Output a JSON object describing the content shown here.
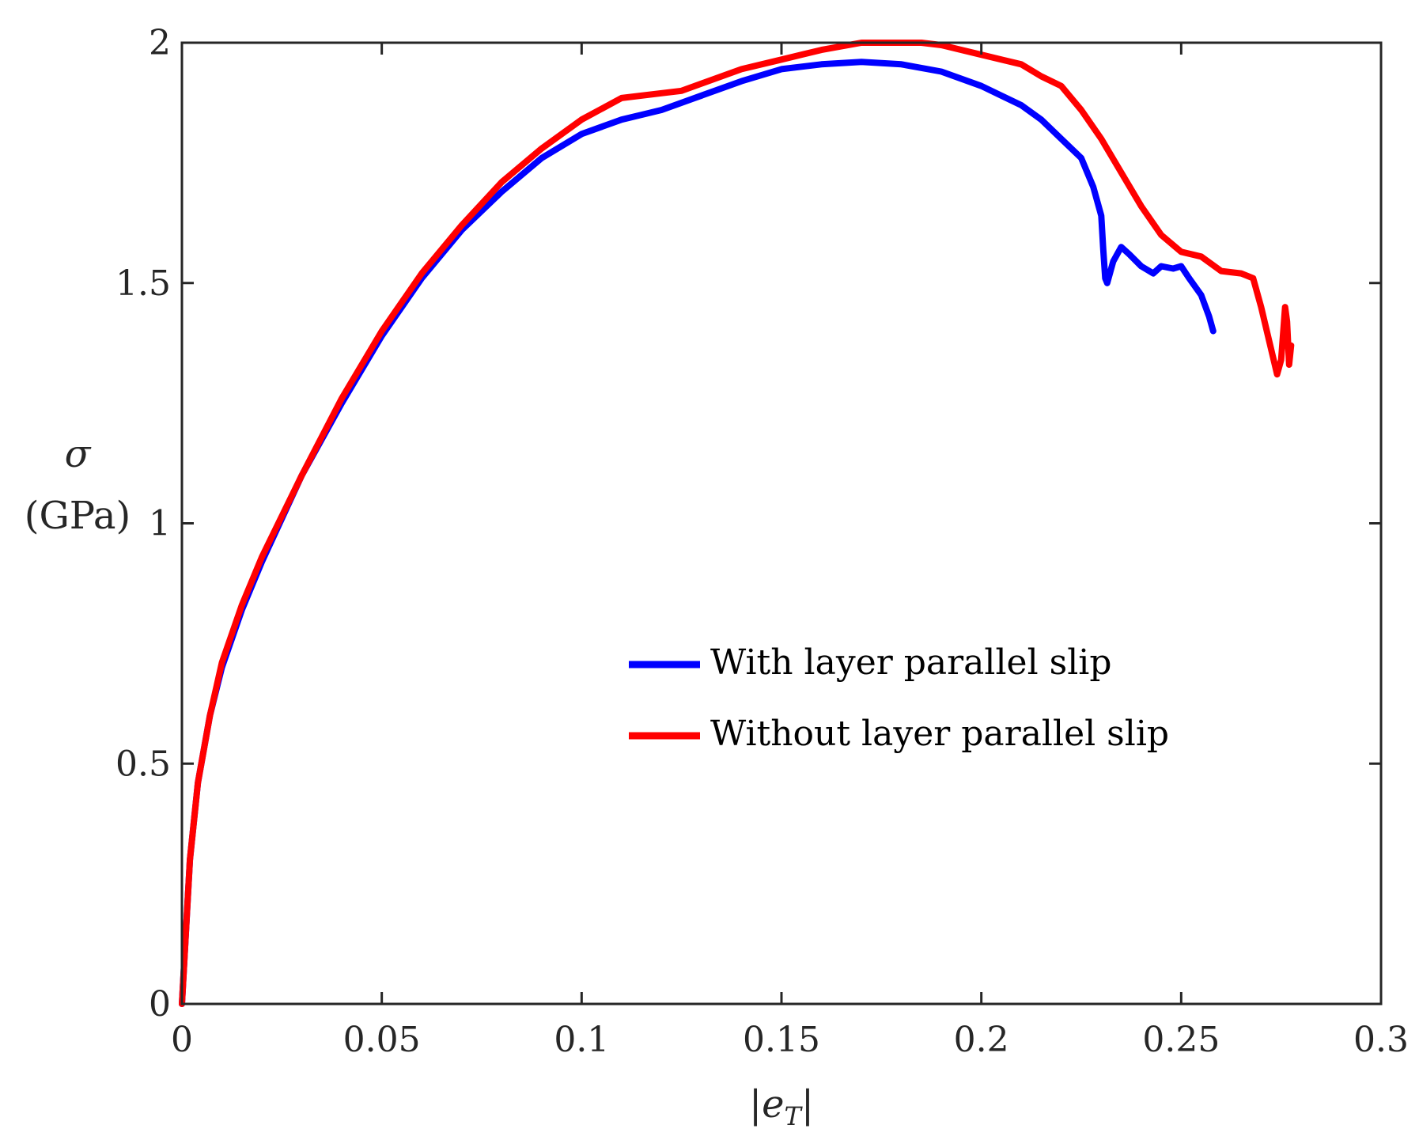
{
  "chart_data": {
    "type": "line",
    "title": "",
    "xlabel": "|e_T|",
    "xlabel_main": "|e",
    "xlabel_sub": "T",
    "xlabel_end": "|",
    "ylabel_line1": "σ",
    "ylabel_line2": "(GPa)",
    "xlim": [
      0,
      0.3
    ],
    "ylim": [
      0,
      2
    ],
    "xticks": [
      0,
      0.05,
      0.1,
      0.15,
      0.2,
      0.25,
      0.3
    ],
    "xtick_labels": [
      "0",
      "0.05",
      "0.1",
      "0.15",
      "0.2",
      "0.25",
      "0.3"
    ],
    "yticks": [
      0,
      0.5,
      1,
      1.5,
      2
    ],
    "ytick_labels": [
      "0",
      "0.5",
      "1",
      "1.5",
      "2"
    ],
    "grid": false,
    "legend_position": "center-right",
    "series": [
      {
        "name": "With layer parallel slip",
        "color": "#0000ff",
        "x": [
          0,
          0.002,
          0.004,
          0.007,
          0.01,
          0.015,
          0.02,
          0.03,
          0.04,
          0.05,
          0.06,
          0.07,
          0.08,
          0.09,
          0.1,
          0.11,
          0.115,
          0.12,
          0.13,
          0.14,
          0.15,
          0.16,
          0.17,
          0.18,
          0.19,
          0.2,
          0.21,
          0.215,
          0.22,
          0.225,
          0.228,
          0.23,
          0.2305,
          0.231,
          0.2315,
          0.233,
          0.235,
          0.237,
          0.24,
          0.243,
          0.245,
          0.248,
          0.25,
          0.252,
          0.255,
          0.257,
          0.258
        ],
        "y": [
          0,
          0.3,
          0.46,
          0.6,
          0.7,
          0.82,
          0.92,
          1.1,
          1.25,
          1.39,
          1.51,
          1.61,
          1.69,
          1.76,
          1.81,
          1.84,
          1.85,
          1.86,
          1.89,
          1.92,
          1.945,
          1.955,
          1.96,
          1.955,
          1.94,
          1.91,
          1.87,
          1.84,
          1.8,
          1.76,
          1.7,
          1.64,
          1.57,
          1.51,
          1.5,
          1.545,
          1.575,
          1.56,
          1.535,
          1.52,
          1.535,
          1.53,
          1.535,
          1.51,
          1.475,
          1.43,
          1.4
        ]
      },
      {
        "name": "Without layer parallel slip",
        "color": "#ff0000",
        "x": [
          0,
          0.002,
          0.004,
          0.007,
          0.01,
          0.015,
          0.02,
          0.03,
          0.04,
          0.05,
          0.06,
          0.07,
          0.08,
          0.09,
          0.1,
          0.11,
          0.12,
          0.125,
          0.13,
          0.14,
          0.15,
          0.16,
          0.17,
          0.18,
          0.185,
          0.19,
          0.2,
          0.21,
          0.215,
          0.22,
          0.225,
          0.23,
          0.235,
          0.24,
          0.245,
          0.25,
          0.255,
          0.26,
          0.265,
          0.268,
          0.27,
          0.272,
          0.274,
          0.275,
          0.276,
          0.2765,
          0.277,
          0.2775
        ],
        "y": [
          0,
          0.3,
          0.46,
          0.6,
          0.71,
          0.83,
          0.93,
          1.1,
          1.26,
          1.4,
          1.52,
          1.62,
          1.71,
          1.78,
          1.84,
          1.885,
          1.895,
          1.9,
          1.915,
          1.945,
          1.965,
          1.985,
          2.0,
          2.0,
          2.0,
          1.995,
          1.975,
          1.955,
          1.93,
          1.91,
          1.86,
          1.8,
          1.73,
          1.66,
          1.6,
          1.565,
          1.555,
          1.525,
          1.52,
          1.51,
          1.45,
          1.38,
          1.31,
          1.34,
          1.45,
          1.42,
          1.33,
          1.37
        ]
      }
    ]
  }
}
